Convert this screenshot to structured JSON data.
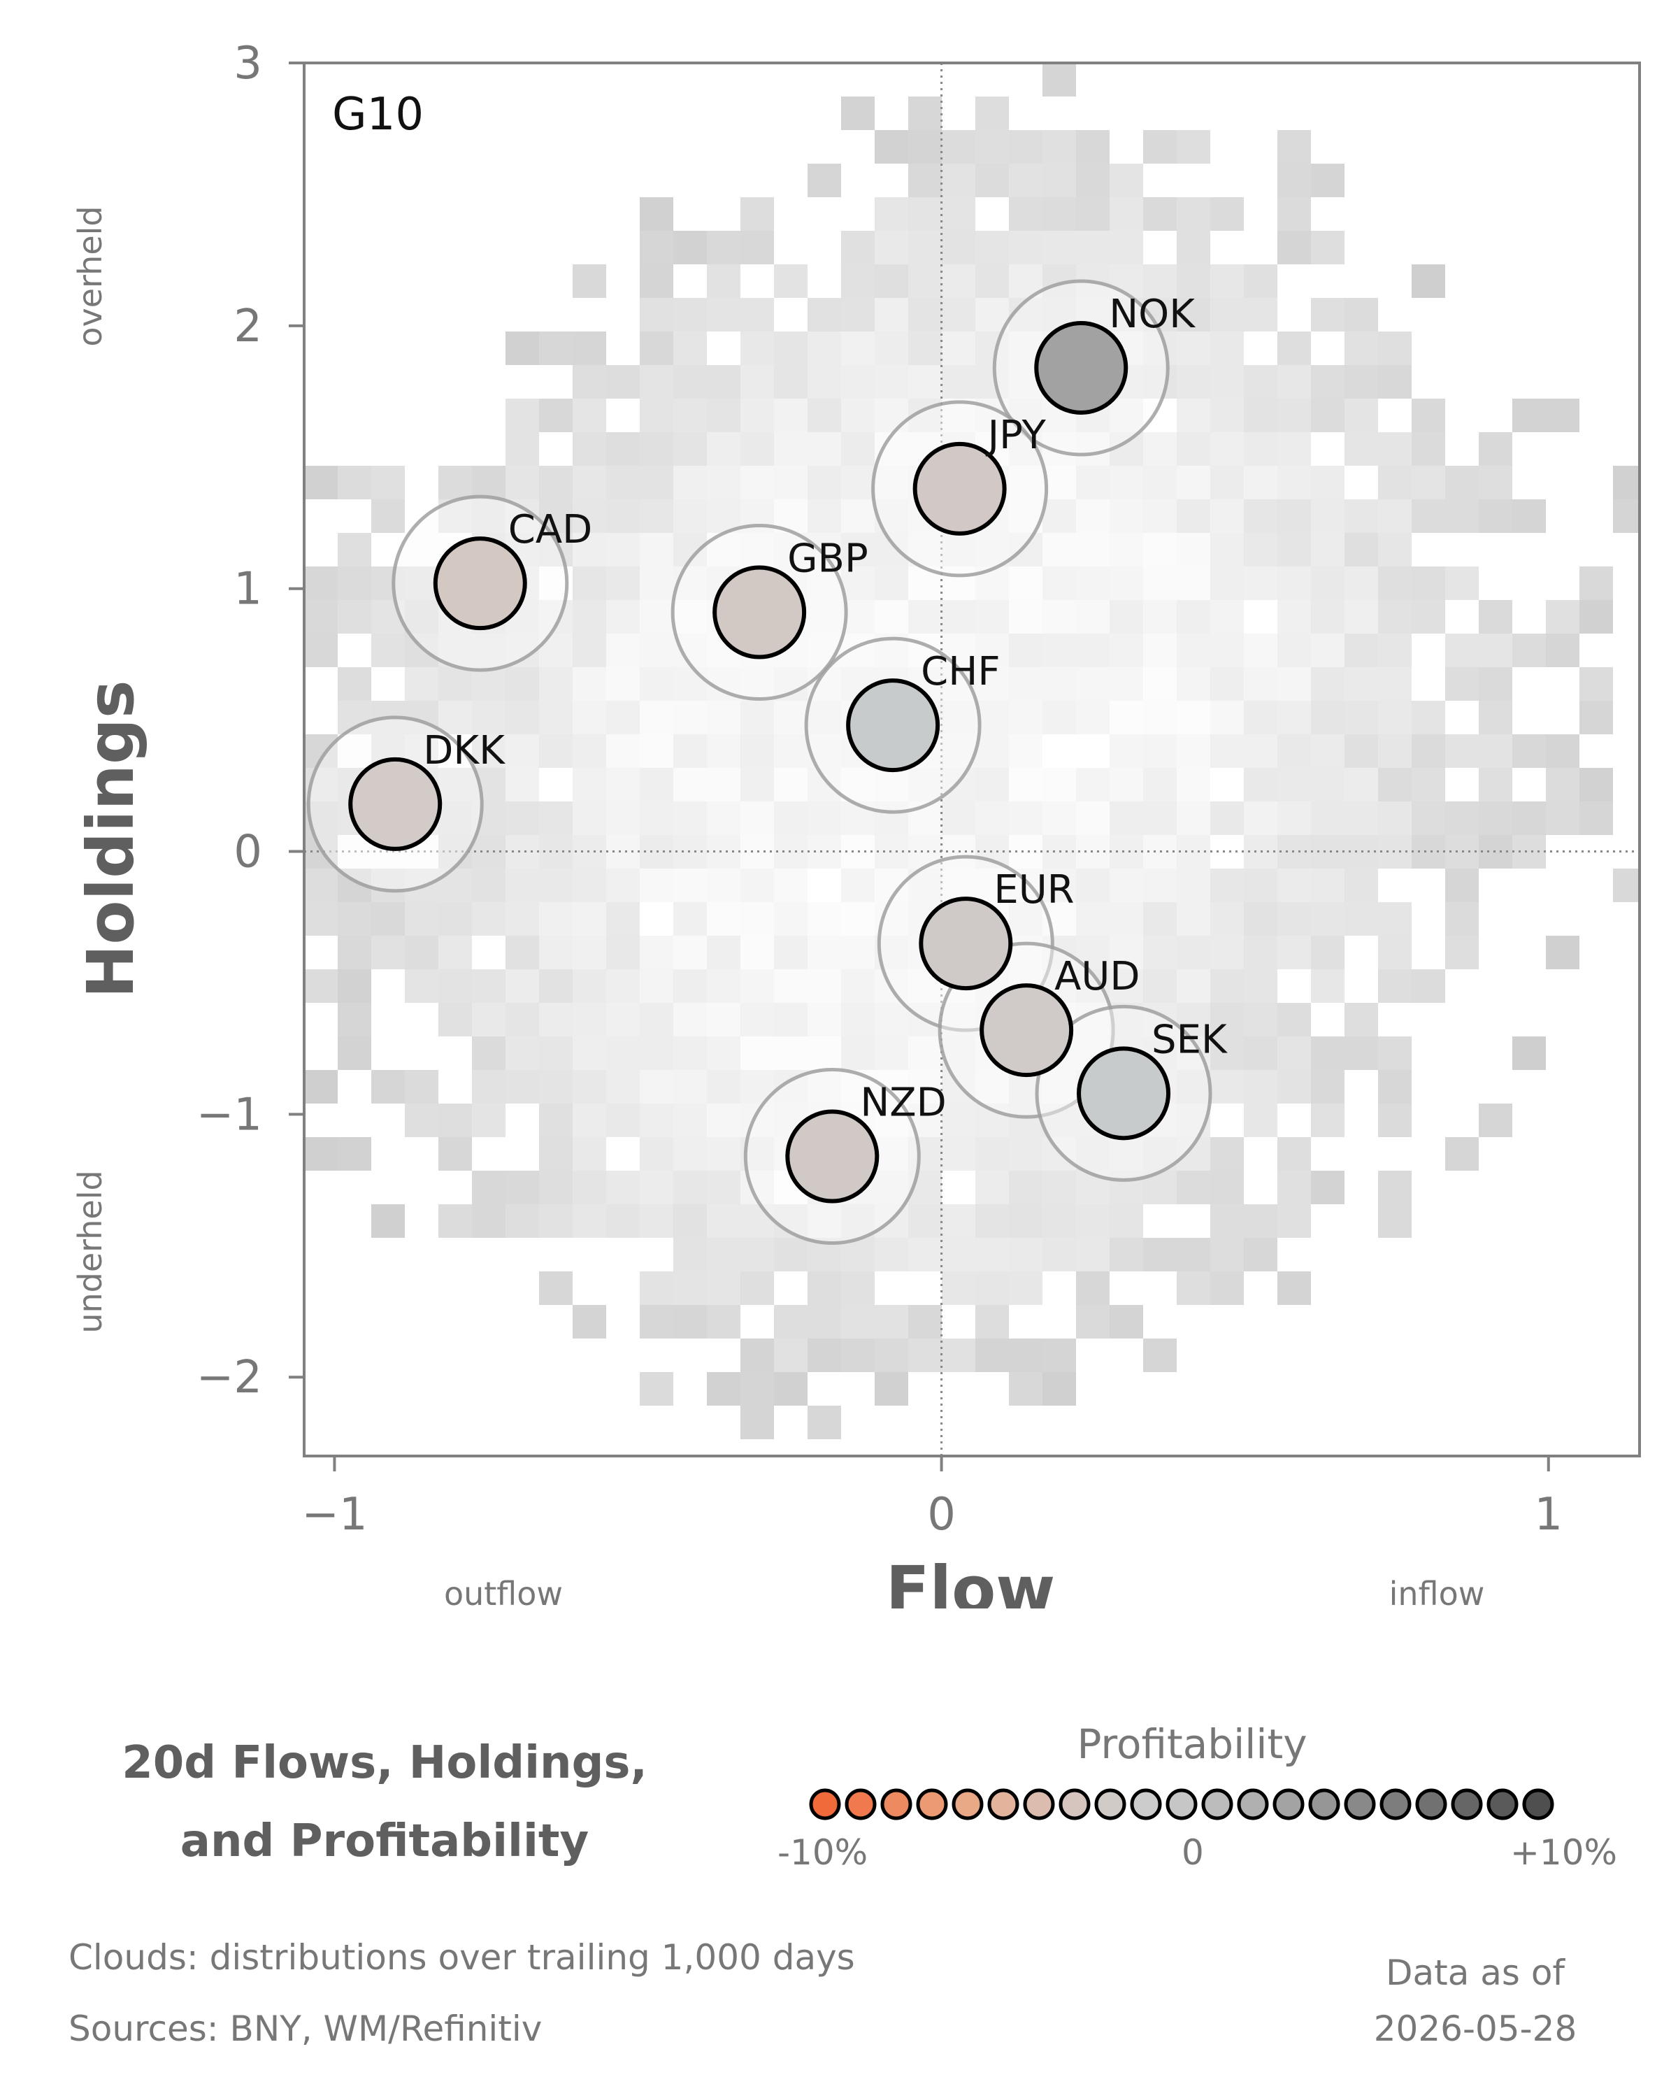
{
  "title_lines": [
    "20d Flows, Holdings,",
    "and Profitability"
  ],
  "footnotes": {
    "clouds": "Clouds:  distributions over trailing 1,000 days",
    "sources": "Sources:  BNY, WM/Refinitiv",
    "asof_label": "Data as of",
    "asof_date": "2026-05-28"
  },
  "legend": {
    "title": "Profitability",
    "tick_min": "-10%",
    "tick_mid": "0",
    "tick_max": "+10%",
    "swatch_colors": [
      "#f06a3a",
      "#f07a4d",
      "#ee8a60",
      "#ec9a73",
      "#e9a886",
      "#e3b39c",
      "#dcbcaf",
      "#d6c5bf",
      "#d1cbc8",
      "#cccccc",
      "#c6c6c6",
      "#bcbcbc",
      "#b0b0b0",
      "#a3a3a3",
      "#969696",
      "#898989",
      "#7d7d7d",
      "#717171",
      "#666666",
      "#5a5a5a",
      "#4f4f4f"
    ]
  },
  "chart_data": {
    "type": "scatter",
    "panel_label": "G10",
    "xlabel": "Flow",
    "ylabel": "Holdings",
    "x_side_labels": {
      "left": "outflow",
      "right": "inflow"
    },
    "y_side_labels": {
      "top": "overheld",
      "bottom": "underheld"
    },
    "xlim": [
      -1.05,
      1.15
    ],
    "ylim": [
      -2.3,
      3.0
    ],
    "xticks": [
      -1,
      0,
      1
    ],
    "xtick_labels": [
      "−1",
      "0",
      "1"
    ],
    "yticks": [
      -2,
      -1,
      0,
      1,
      2,
      3
    ],
    "ytick_labels": [
      "−2",
      "−1",
      "0",
      "1",
      "2",
      "3"
    ],
    "reference_lines": {
      "x": 0,
      "y": 0
    },
    "points": [
      {
        "name": "NOK",
        "x": 0.23,
        "y": 1.84,
        "color": "#a2a2a2"
      },
      {
        "name": "JPY",
        "x": 0.03,
        "y": 1.38,
        "color": "#d2c8c5"
      },
      {
        "name": "CAD",
        "x": -0.76,
        "y": 1.02,
        "color": "#d4c8c3"
      },
      {
        "name": "GBP",
        "x": -0.3,
        "y": 0.91,
        "color": "#d2c9c4"
      },
      {
        "name": "CHF",
        "x": -0.08,
        "y": 0.48,
        "color": "#c8cbcb"
      },
      {
        "name": "DKK",
        "x": -0.9,
        "y": 0.18,
        "color": "#d2cbc7"
      },
      {
        "name": "EUR",
        "x": 0.04,
        "y": -0.35,
        "color": "#cfcac8"
      },
      {
        "name": "AUD",
        "x": 0.14,
        "y": -0.68,
        "color": "#d0cbc8"
      },
      {
        "name": "SEK",
        "x": 0.3,
        "y": -0.92,
        "color": "#c7cbcb"
      },
      {
        "name": "NZD",
        "x": -0.18,
        "y": -1.16,
        "color": "#d1c9c6"
      }
    ]
  }
}
